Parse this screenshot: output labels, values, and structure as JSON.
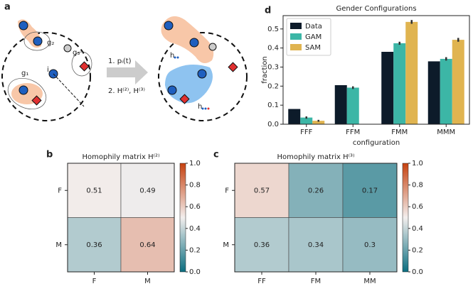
{
  "diagram": {
    "panel": "a",
    "step1": "1. pᵢ(t)",
    "step2": "2. H⁽²⁾, H⁽³⁾",
    "g1": "g₁",
    "g2": "g₂",
    "g3": "g₃",
    "node": "i",
    "h1": "h",
    "h2": "h"
  },
  "chart_data": [
    {
      "type": "bar",
      "panel": "d",
      "title": "Gender Configurations",
      "xlabel": "configuration",
      "ylabel": "fraction",
      "categories": [
        "FFF",
        "FFM",
        "FMM",
        "MMM"
      ],
      "series": [
        {
          "name": "Data",
          "color": "#0d1b2a",
          "values": [
            0.08,
            0.205,
            0.38,
            0.33
          ],
          "errors": [
            0,
            0,
            0,
            0
          ]
        },
        {
          "name": "GAM",
          "color": "#3cb6a6",
          "values": [
            0.035,
            0.192,
            0.425,
            0.343
          ],
          "errors": [
            0.006,
            0.007,
            0.008,
            0.009
          ]
        },
        {
          "name": "SAM",
          "color": "#e0b450",
          "values": [
            0.018,
            0,
            0.537,
            0.443
          ],
          "errors": [
            0.005,
            0,
            0.01,
            0.01
          ]
        }
      ],
      "ylim": [
        0,
        0.57
      ],
      "yticks": [
        {
          "value": 0,
          "label": "0.0"
        },
        0.1,
        0.2,
        0.3,
        0.4,
        0.5
      ],
      "legend": "upper-left"
    },
    {
      "type": "heatmap",
      "panel": "b",
      "title": "Homophily matrix H⁽²⁾",
      "rows": [
        "F",
        "M"
      ],
      "columns": [
        "F",
        "M"
      ],
      "values": [
        [
          0.51,
          0.49
        ],
        [
          0.36,
          0.64
        ]
      ],
      "cmap": [
        "#0b6e80",
        "#f3efee",
        "#c6410f"
      ],
      "clim": [
        0,
        1
      ],
      "cticks": [
        {
          "value": 0,
          "label": "0.0"
        },
        0.2,
        0.4,
        0.6,
        0.8,
        {
          "value": 1,
          "label": "1.0"
        }
      ]
    },
    {
      "type": "heatmap",
      "panel": "c",
      "title": "Homophily matrix H⁽³⁾",
      "rows": [
        "F",
        "M"
      ],
      "columns": [
        "FF",
        "FM",
        "MM"
      ],
      "values": [
        [
          0.57,
          0.26,
          0.17
        ],
        [
          0.36,
          0.34,
          0.3
        ]
      ],
      "cmap": [
        "#0b6e80",
        "#f3efee",
        "#c6410f"
      ],
      "clim": [
        0,
        1
      ],
      "cticks": [
        {
          "value": 0,
          "label": "0.0"
        },
        0.2,
        0.4,
        0.6,
        0.8,
        {
          "value": 1,
          "label": "1.0"
        }
      ]
    }
  ]
}
